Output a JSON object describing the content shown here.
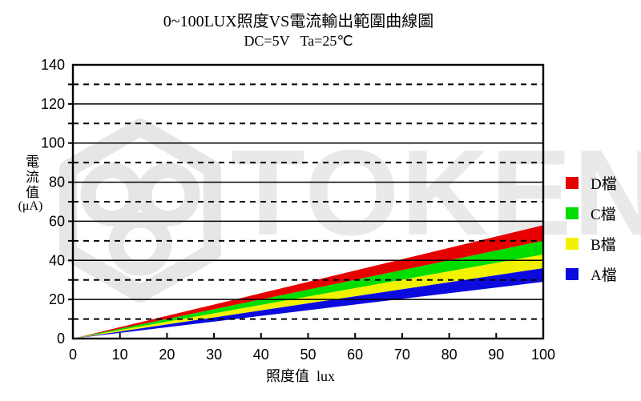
{
  "header": {
    "title": "0~100LUX照度VS電流輸出範圍曲線圖",
    "subtitle": "DC=5V   Ta=25℃"
  },
  "axes": {
    "y_label": "電流值",
    "y_unit": "(μA)",
    "x_label": "照度值  lux"
  },
  "watermark": {
    "text": "TOKEN",
    "logo": "token-hexagon-logo",
    "color": "#e9e9e9"
  },
  "chart_data": {
    "type": "area",
    "title": "0~100LUX照度VS電流輸出範圍曲線圖",
    "subtitle": "DC=5V Ta=25℃",
    "xlabel": "照度值 lux",
    "ylabel": "電流值 (μA)",
    "xlim": [
      0,
      100
    ],
    "ylim": [
      0,
      140
    ],
    "xticks": [
      0,
      10,
      20,
      30,
      40,
      50,
      60,
      70,
      80,
      90,
      100
    ],
    "yticks_labeled": [
      0,
      20,
      40,
      60,
      80,
      100,
      120,
      140
    ],
    "gridlines_solid": [
      20,
      40,
      60,
      80,
      100,
      120
    ],
    "gridlines_dashed": [
      10,
      30,
      50,
      70,
      90,
      110,
      130
    ],
    "grid": "on",
    "legend_position": "right",
    "series": [
      {
        "name": "D檔",
        "color": "#e60000",
        "x": [
          0,
          100
        ],
        "y_upper": [
          0,
          58
        ],
        "y_lower": [
          0,
          50
        ]
      },
      {
        "name": "C檔",
        "color": "#00dd00",
        "x": [
          0,
          100
        ],
        "y_upper": [
          0,
          50
        ],
        "y_lower": [
          0,
          43
        ]
      },
      {
        "name": "B檔",
        "color": "#f2f200",
        "x": [
          0,
          100
        ],
        "y_upper": [
          0,
          43
        ],
        "y_lower": [
          0,
          36
        ]
      },
      {
        "name": "A檔",
        "color": "#0b0be0",
        "x": [
          0,
          100
        ],
        "y_upper": [
          0,
          36
        ],
        "y_lower": [
          0,
          29
        ]
      }
    ]
  }
}
